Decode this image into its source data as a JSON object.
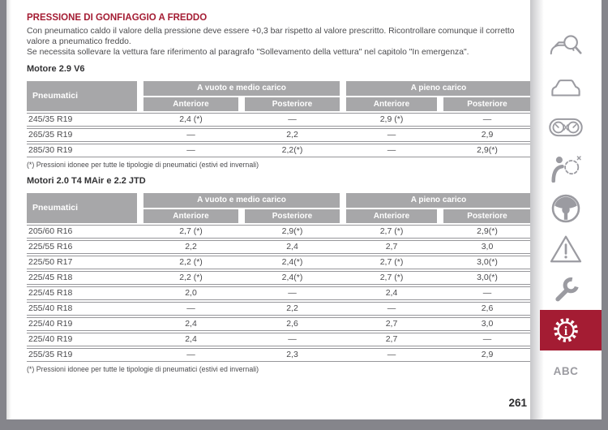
{
  "colors": {
    "accent": "#a41c33",
    "table_header_gray": "#a7a7a9",
    "frame_gray": "#85858b"
  },
  "content": {
    "title": "PRESSIONE DI GONFIAGGIO A FREDDO",
    "intro1": "Con pneumatico caldo il valore della pressione deve essere +0,3 bar rispetto al valore prescritto. Ricontrollare comunque il corretto valore a pneumatico freddo.",
    "intro2": "Se necessita sollevare la vettura fare riferimento al paragrafo \"Sollevamento della vettura\" nel capitolo \"In emergenza\".",
    "page_number": "261"
  },
  "tables": [
    {
      "heading": "Motore 2.9 V6",
      "col_header": "Pneumatici",
      "groups": [
        "A vuoto e medio carico",
        "A pieno carico"
      ],
      "sub_headers": [
        "Anteriore",
        "Posteriore",
        "Anteriore",
        "Posteriore"
      ],
      "rows": [
        {
          "tyre": "245/35 R19",
          "values": [
            "2,4 (*)",
            "—",
            "2,9 (*)",
            "—"
          ]
        },
        {
          "tyre": "265/35 R19",
          "values": [
            "—",
            "2,2",
            "—",
            "2,9"
          ]
        },
        {
          "tyre": "285/30 R19",
          "values": [
            "—",
            "2,2(*)",
            "—",
            "2,9(*)"
          ]
        }
      ],
      "footnote": "(*) Pressioni idonee per tutte le tipologie di pneumatici (estivi ed invernali)"
    },
    {
      "heading": "Motori 2.0 T4 MAir e 2.2 JTD",
      "col_header": "Pneumatici",
      "groups": [
        "A vuoto e medio carico",
        "A pieno carico"
      ],
      "sub_headers": [
        "Anteriore",
        "Posteriore",
        "Anteriore",
        "Posteriore"
      ],
      "rows": [
        {
          "tyre": "205/60 R16",
          "values": [
            "2,7 (*)",
            "2,9(*)",
            "2,7 (*)",
            "2,9(*)"
          ]
        },
        {
          "tyre": "225/55 R16",
          "values": [
            "2,2",
            "2,4",
            "2,7",
            "3,0"
          ]
        },
        {
          "tyre": "225/50 R17",
          "values": [
            "2,2 (*)",
            "2,4(*)",
            "2,7 (*)",
            "3,0(*)"
          ]
        },
        {
          "tyre": "225/45 R18",
          "values": [
            "2,2 (*)",
            "2,4(*)",
            "2,7 (*)",
            "3,0(*)"
          ]
        },
        {
          "tyre": "225/45 R18",
          "values": [
            "2,0",
            "—",
            "2,4",
            "—"
          ]
        },
        {
          "tyre": "255/40 R18",
          "values": [
            "—",
            "2,2",
            "—",
            "2,6"
          ]
        },
        {
          "tyre": "225/40 R19",
          "values": [
            "2,4",
            "2,6",
            "2,7",
            "3,0"
          ]
        },
        {
          "tyre": "225/40 R19",
          "values": [
            "2,4",
            "—",
            "2,7",
            "—"
          ]
        },
        {
          "tyre": "255/35 R19",
          "values": [
            "—",
            "2,3",
            "—",
            "2,9"
          ]
        }
      ],
      "footnote": "(*) Pressioni idonee per tutte le tipologie di pneumatici (estivi ed invernali)"
    }
  ],
  "sidebar": {
    "abc_label": "ABC",
    "active_item": "info-gear",
    "items": [
      {
        "icon": "car-search"
      },
      {
        "icon": "car-front"
      },
      {
        "icon": "dashboard-gauges"
      },
      {
        "icon": "airbag"
      },
      {
        "icon": "steering-wheel"
      },
      {
        "icon": "warning-triangle"
      },
      {
        "icon": "wrench"
      },
      {
        "icon": "info-gear",
        "active": true
      },
      {
        "icon": "abc",
        "label": "ABC"
      }
    ]
  }
}
